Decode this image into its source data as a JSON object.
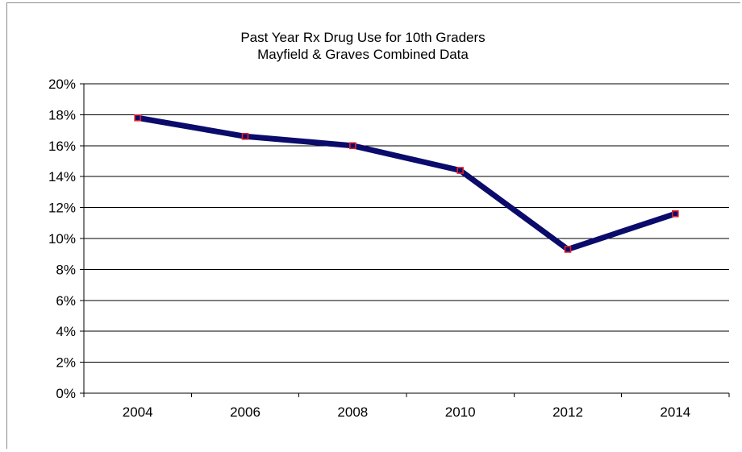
{
  "chart_data": {
    "type": "line",
    "title": [
      "Past Year Rx Drug Use for 10th Graders",
      "Mayfield & Graves Combined Data"
    ],
    "xlabel": "",
    "ylabel": "",
    "categories": [
      "2004",
      "2006",
      "2008",
      "2010",
      "2012",
      "2014"
    ],
    "series": [
      {
        "name": "",
        "values": [
          17.8,
          16.6,
          16.0,
          14.4,
          9.3,
          11.6
        ],
        "line_color": "#0b0b6b",
        "marker_edge_color": "#e0202a"
      }
    ],
    "ylim": [
      0,
      20
    ],
    "y_ticks": [
      0,
      2,
      4,
      6,
      8,
      10,
      12,
      14,
      16,
      18,
      20
    ],
    "y_tick_format": "percent",
    "grid": {
      "horizontal": true,
      "vertical": false
    },
    "legend": "none"
  }
}
